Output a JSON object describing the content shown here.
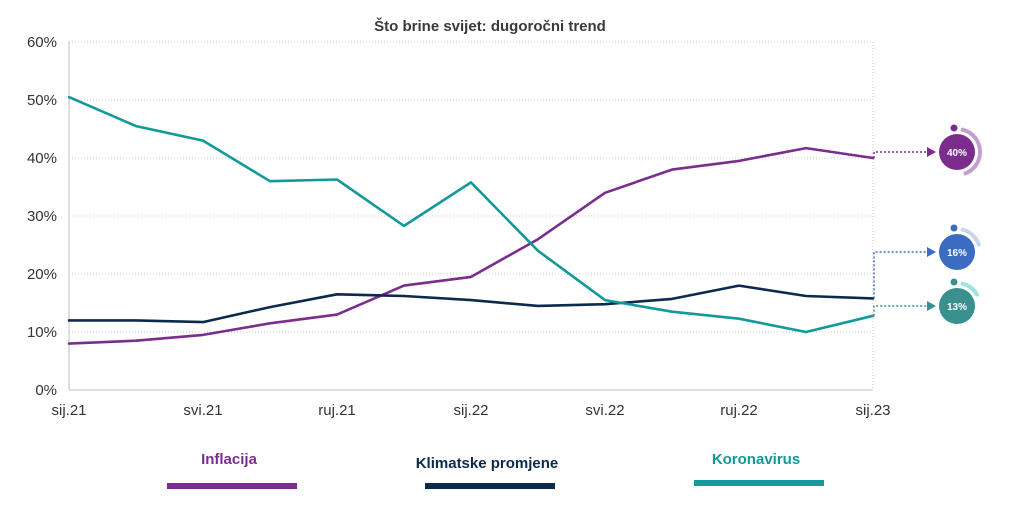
{
  "chart_data": {
    "type": "line",
    "title": "Što brine svijet: dugoročni trend",
    "xlabel": "",
    "ylabel": "",
    "x_tick_labels": [
      "sij.21",
      "svi.21",
      "ruj.21",
      "sij.22",
      "svi.22",
      "ruj.22",
      "sij.23"
    ],
    "y_tick_labels": [
      "0%",
      "10%",
      "20%",
      "30%",
      "40%",
      "50%",
      "60%"
    ],
    "ylim": [
      0,
      60
    ],
    "n_points": 13,
    "grid": true,
    "legend_position": "bottom",
    "series": [
      {
        "name": "Inflacija",
        "color": "#7b2d8e",
        "values": [
          8,
          8.5,
          9.5,
          11.5,
          13,
          18,
          19.5,
          26,
          34,
          38,
          39.5,
          41.7,
          40
        ],
        "callout": "40%"
      },
      {
        "name": "Klimatske promjene",
        "color": "#0d2a4e",
        "values": [
          12,
          12,
          11.7,
          14.3,
          16.5,
          16.2,
          15.5,
          14.5,
          14.8,
          15.7,
          18,
          16.2,
          15.8
        ],
        "callout": "16%"
      },
      {
        "name": "Koronavirus",
        "color": "#12999a",
        "values": [
          50.5,
          45.5,
          43,
          36,
          36.3,
          28.3,
          35.8,
          24,
          15.5,
          13.5,
          12.3,
          10,
          12.8
        ],
        "callout": "13%"
      }
    ]
  }
}
